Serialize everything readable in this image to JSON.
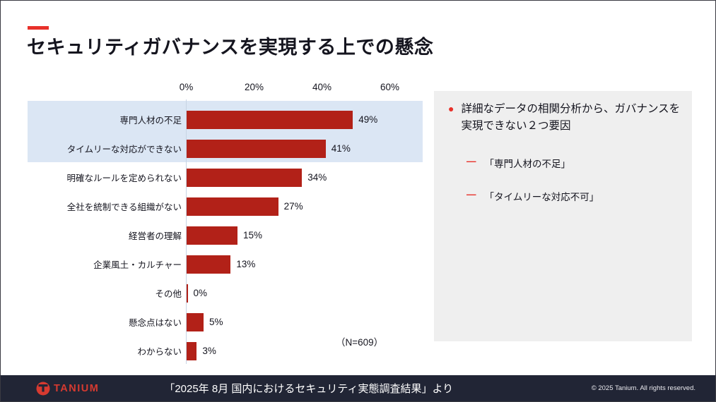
{
  "title": "セキュリティガバナンスを実現する上での懸念",
  "chart_data": {
    "type": "bar",
    "orientation": "horizontal",
    "categories": [
      "専門人材の不足",
      "タイムリーな対応ができない",
      "明確なルールを定められない",
      "全社を統制できる組織がない",
      "経営者の理解",
      "企業風土・カルチャー",
      "その他",
      "懸念点はない",
      "わからない"
    ],
    "values": [
      49,
      41,
      34,
      27,
      15,
      13,
      0,
      5,
      3
    ],
    "value_labels": [
      "49%",
      "41%",
      "34%",
      "27%",
      "15%",
      "13%",
      "0%",
      "5%",
      "3%"
    ],
    "x_tick_labels": [
      "0%",
      "20%",
      "40%",
      "60%"
    ],
    "x_tick_values": [
      0,
      20,
      40,
      60
    ],
    "xlim": [
      0,
      60
    ],
    "highlighted_rows": [
      0,
      1
    ],
    "sample_note": "（N=609）",
    "grid": "off",
    "legend": "none"
  },
  "side_panel": {
    "bullet": "詳細なデータの相関分析から、ガバナンスを実現できない２つ要因",
    "sub_bullets": [
      "「専門人材の不足」",
      "「タイムリーな対応不可」"
    ]
  },
  "footer": {
    "brand": "TANIUM",
    "source": "「2025年 8月 国内におけるセキュリティ実態調査結果」より",
    "copyright": "© 2025 Tanium. All rights reserved."
  },
  "colors": {
    "bar_red": "#B22118",
    "highlight_blue": "#DBE6F4",
    "accent_red": "#E8312A",
    "panel_gray": "#EFEFEF",
    "footer_navy": "#212535",
    "brand_red": "#D63A30"
  }
}
